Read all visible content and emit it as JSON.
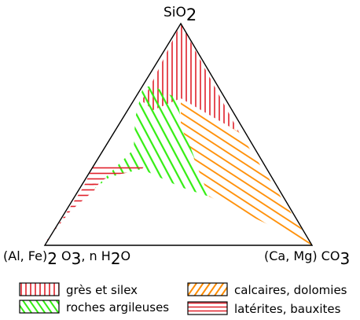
{
  "apex": {
    "top": {
      "main": "SiO",
      "sub": "2"
    },
    "left": {
      "p1": "(Al, Fe)",
      "s1": "2",
      "p2": " O",
      "s2": "3",
      "p3": ", n H",
      "s3": "2",
      "p4": "O"
    },
    "right": {
      "p1": "(Ca, Mg) CO",
      "s1": "3"
    }
  },
  "legend": [
    {
      "label": "grès et silex",
      "color": "#e0202a",
      "hatch": "vertical"
    },
    {
      "label": "roches argileuses",
      "color": "#33ee11",
      "hatch": "diagonal-right"
    },
    {
      "label": "calcaires, dolomies",
      "color": "#ff8c00",
      "hatch": "diagonal-left"
    },
    {
      "label": "latérites, bauxites",
      "color": "#e0202a",
      "hatch": "horizontal"
    }
  ]
}
